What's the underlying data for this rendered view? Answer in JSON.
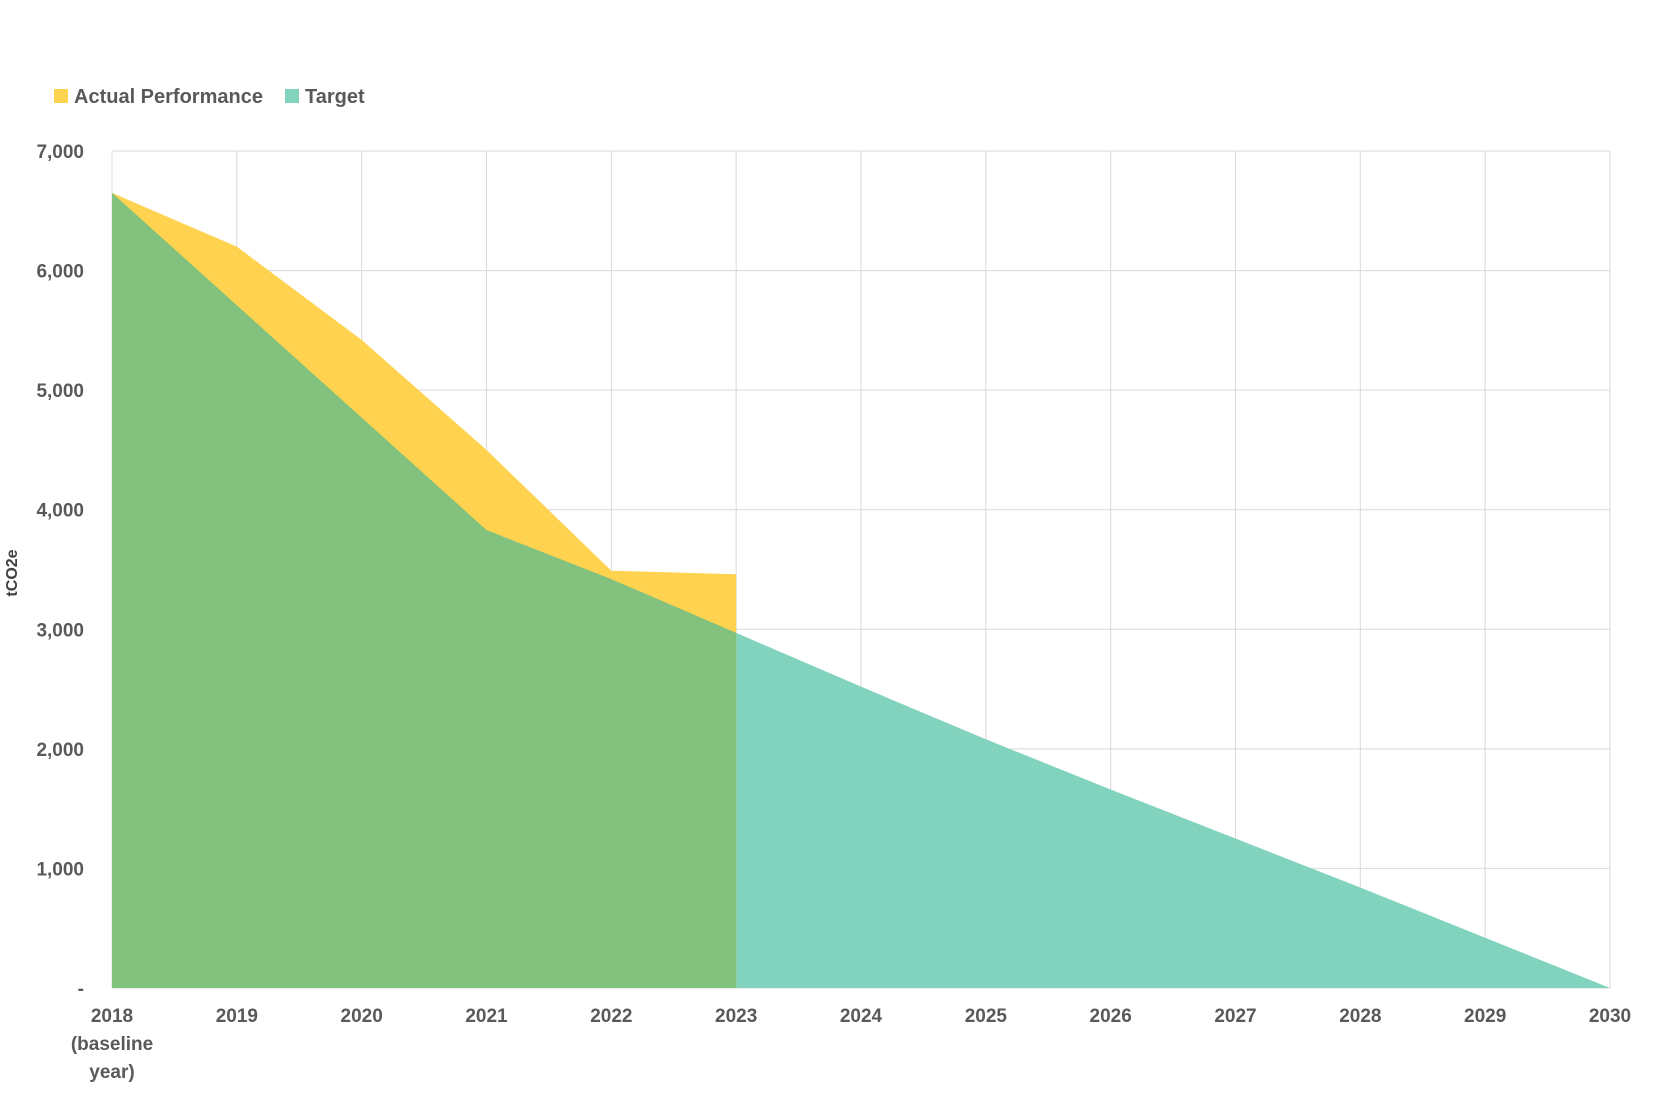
{
  "chart_data": {
    "type": "area",
    "title": "",
    "xlabel": "",
    "ylabel": "tCO2e",
    "categories": [
      "2018\n(baseline\nyear)",
      "2019",
      "2020",
      "2021",
      "2022",
      "2023",
      "2024",
      "2025",
      "2026",
      "2027",
      "2028",
      "2029",
      "2030"
    ],
    "ylim": [
      0,
      7000
    ],
    "yticks": [
      0,
      1000,
      2000,
      3000,
      4000,
      5000,
      6000,
      7000
    ],
    "ytick_labels": [
      "-",
      "1,000",
      "2,000",
      "3,000",
      "4,000",
      "5,000",
      "6,000",
      "7,000"
    ],
    "grid": true,
    "legend_position": "top-left",
    "series": [
      {
        "name": "Actual Performance",
        "color": "#FFD34F",
        "values": [
          6650,
          6200,
          5420,
          4500,
          3490,
          3460,
          null,
          null,
          null,
          null,
          null,
          null,
          null
        ]
      },
      {
        "name": "Target",
        "color": "#82D3BD",
        "values": [
          6650,
          5710,
          4770,
          3830,
          3420,
          2970,
          2520,
          2080,
          1660,
          1250,
          840,
          420,
          0
        ]
      }
    ],
    "overlap_color": "#82C27E"
  }
}
